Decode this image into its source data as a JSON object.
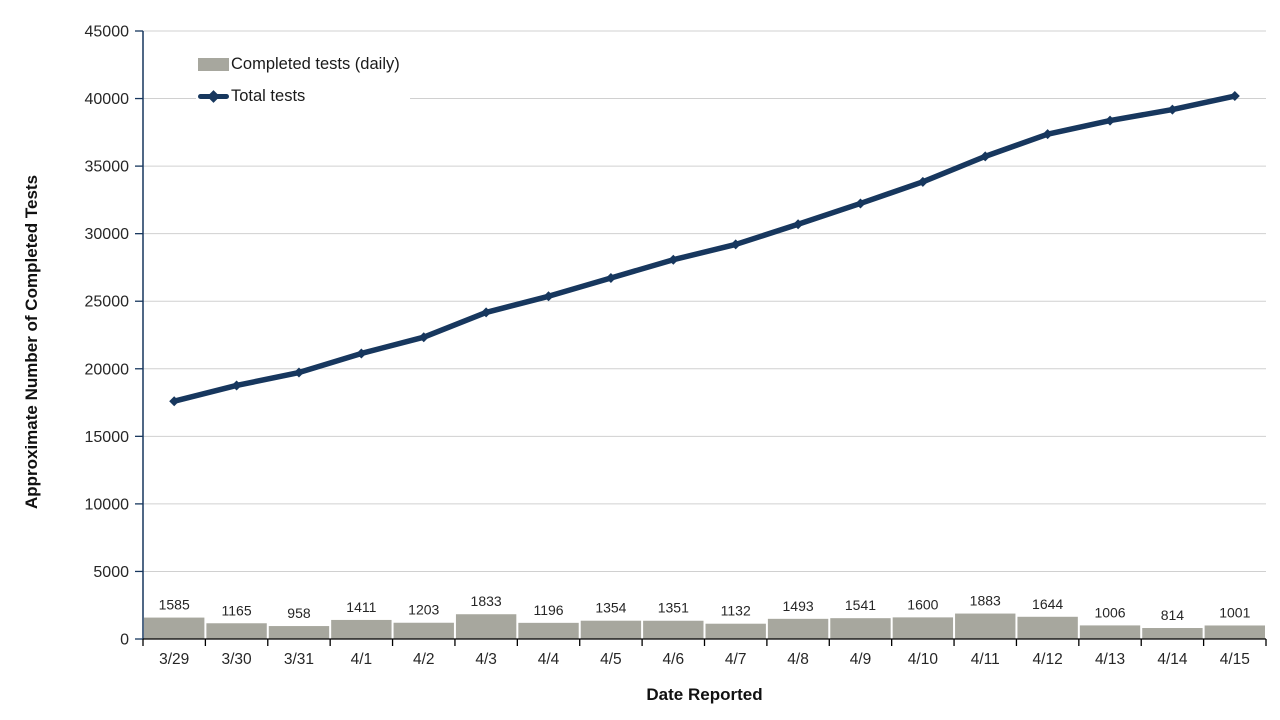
{
  "chart_data": {
    "type": "combo-bar-line",
    "title": "",
    "xlabel": "Date Reported",
    "ylabel": "Approximate Number of Completed Tests",
    "categories": [
      "3/29",
      "3/30",
      "3/31",
      "4/1",
      "4/2",
      "4/3",
      "4/4",
      "4/5",
      "4/6",
      "4/7",
      "4/8",
      "4/9",
      "4/10",
      "4/11",
      "4/12",
      "4/13",
      "4/14",
      "4/15"
    ],
    "series": [
      {
        "name": "Completed tests (daily)",
        "type": "bar",
        "color": "#A7A79E",
        "values": [
          1585,
          1165,
          958,
          1411,
          1203,
          1833,
          1196,
          1354,
          1351,
          1132,
          1493,
          1541,
          1600,
          1883,
          1644,
          1006,
          814,
          1001
        ],
        "data_labels": true
      },
      {
        "name": "Total tests",
        "type": "line",
        "color": "#17375E",
        "marker": "diamond",
        "values": [
          17600,
          18765,
          19723,
          21134,
          22337,
          24170,
          25366,
          26720,
          28071,
          29203,
          30696,
          32237,
          33837,
          35720,
          37364,
          38370,
          39184,
          40185
        ]
      }
    ],
    "ylim": [
      0,
      45000
    ],
    "yticks": [
      0,
      5000,
      10000,
      15000,
      20000,
      25000,
      30000,
      35000,
      40000,
      45000
    ],
    "grid": "horizontal",
    "legend_position": "top-left-inside",
    "colors": {
      "gridline": "#D0D0D0",
      "y_axis": "#17375E",
      "x_axis": "#000000",
      "bar_label": "#8A8A8A",
      "tick_label": "#262626"
    }
  }
}
